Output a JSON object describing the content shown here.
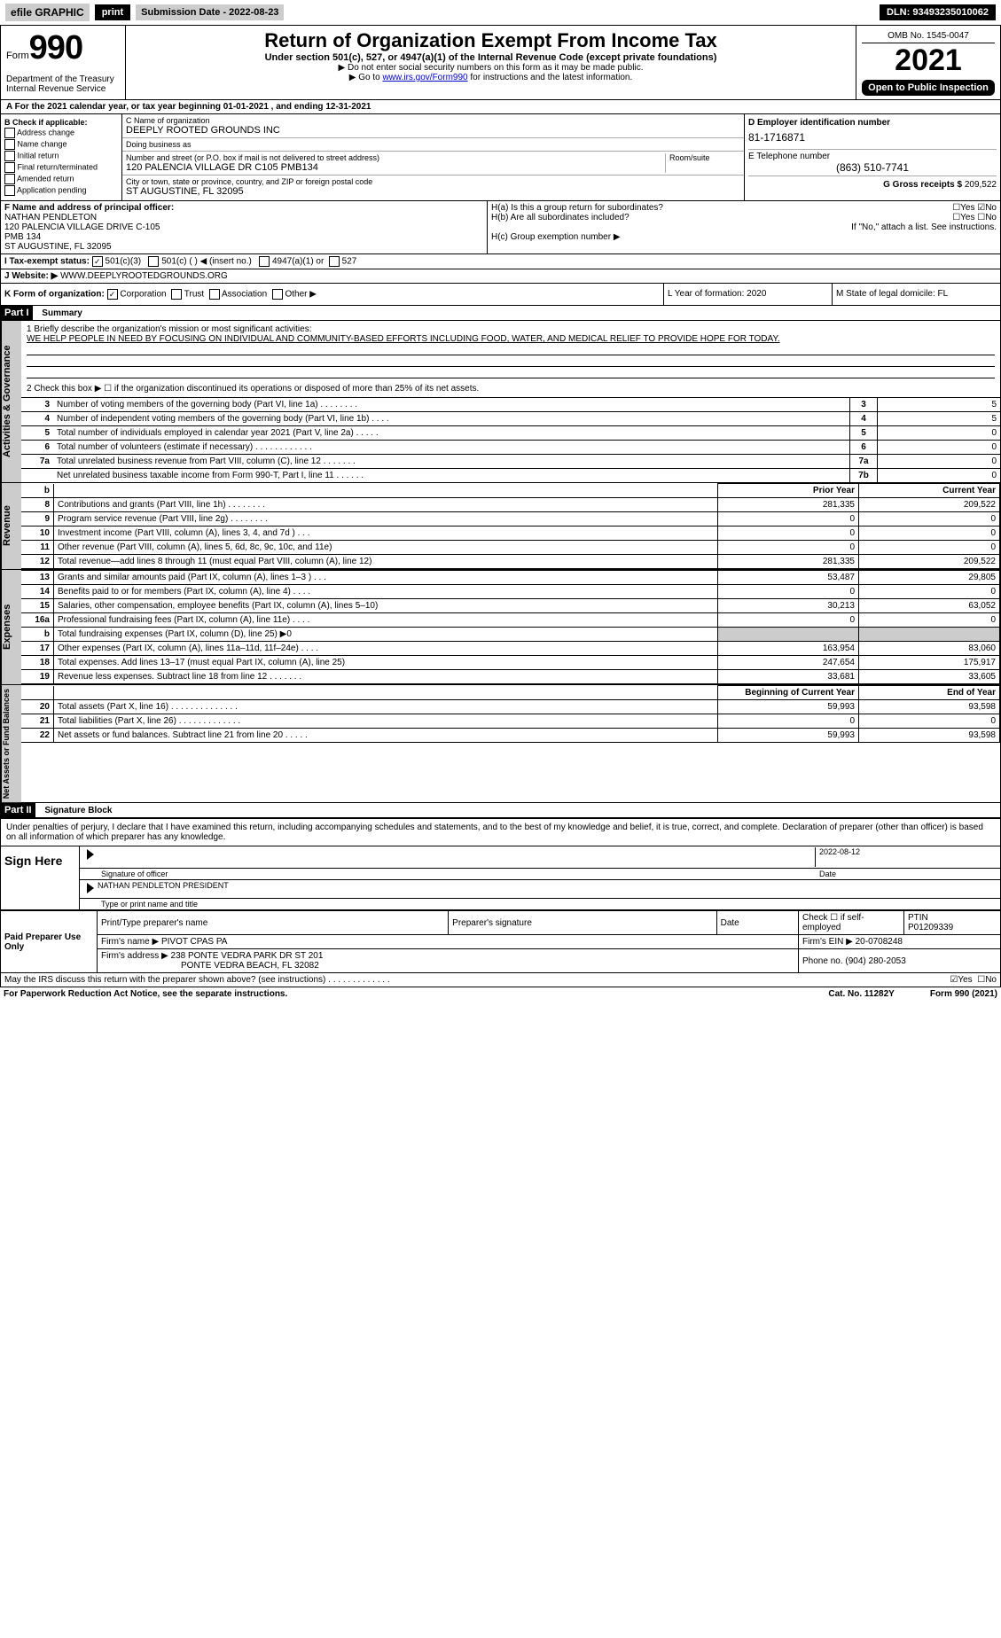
{
  "topbar": {
    "efile": "efile GRAPHIC",
    "print": "print",
    "submission": "Submission Date - 2022-08-23",
    "dln": "DLN: 93493235010062"
  },
  "header": {
    "form_word": "Form",
    "form_number": "990",
    "dept": "Department of the Treasury Internal Revenue Service",
    "title": "Return of Organization Exempt From Income Tax",
    "subtitle": "Under section 501(c), 527, or 4947(a)(1) of the Internal Revenue Code (except private foundations)",
    "arrow1": "▶ Do not enter social security numbers on this form as it may be made public.",
    "arrow2_pre": "▶ Go to ",
    "arrow2_link": "www.irs.gov/Form990",
    "arrow2_post": " for instructions and the latest information.",
    "omb": "OMB No. 1545-0047",
    "year": "2021",
    "open": "Open to Public Inspection"
  },
  "row_a": "A For the 2021 calendar year, or tax year beginning 01-01-2021    , and ending 12-31-2021",
  "col_b": {
    "title": "B Check if applicable:",
    "items": [
      "Address change",
      "Name change",
      "Initial return",
      "Final return/terminated",
      "Amended return",
      "Application pending"
    ]
  },
  "col_c": {
    "name_label": "C Name of organization",
    "name": "DEEPLY ROOTED GROUNDS INC",
    "dba_label": "Doing business as",
    "dba": "",
    "addr_label": "Number and street (or P.O. box if mail is not delivered to street address)",
    "room_label": "Room/suite",
    "addr": "120 PALENCIA VILLAGE DR C105 PMB134",
    "city_label": "City or town, state or province, country, and ZIP or foreign postal code",
    "city": "ST AUGUSTINE, FL  32095"
  },
  "col_d": {
    "ein_label": "D Employer identification number",
    "ein": "81-1716871",
    "phone_label": "E Telephone number",
    "phone": "(863) 510-7741",
    "gross_label": "G Gross receipts $",
    "gross": "209,522"
  },
  "section_f": {
    "label": "F  Name and address of principal officer:",
    "lines": [
      "NATHAN PENDLETON",
      "120 PALENCIA VILLAGE DRIVE C-105",
      "PMB 134",
      "ST AUGUSTINE, FL  32095"
    ]
  },
  "section_h": {
    "a": "H(a)  Is this a group return for subordinates?",
    "b": "H(b)  Are all subordinates included?",
    "b_note": "If \"No,\" attach a list. See instructions.",
    "c": "H(c)  Group exemption number ▶"
  },
  "row_i": {
    "label": "I    Tax-exempt status:",
    "opts": [
      "501(c)(3)",
      "501(c) (  ) ◀ (insert no.)",
      "4947(a)(1) or",
      "527"
    ]
  },
  "row_j": {
    "label": "J   Website: ▶",
    "val": "WWW.DEEPLYROOTEDGROUNDS.ORG"
  },
  "row_k": {
    "label": "K Form of organization:",
    "opts": [
      "Corporation",
      "Trust",
      "Association",
      "Other ▶"
    ],
    "l": "L Year of formation: 2020",
    "m": "M State of legal domicile: FL"
  },
  "part1": {
    "header": "Part I",
    "title": "Summary",
    "mission_q": "1   Briefly describe the organization's mission or most significant activities:",
    "mission": "WE HELP PEOPLE IN NEED BY FOCUSING ON INDIVIDUAL AND COMMUNITY-BASED EFFORTS INCLUDING FOOD, WATER, AND MEDICAL RELIEF TO PROVIDE HOPE FOR TODAY.",
    "line2": "2    Check this box ▶ ☐  if the organization discontinued its operations or disposed of more than 25% of its net assets.",
    "sidebar1": "Activities & Governance",
    "sidebar2": "Revenue",
    "sidebar3": "Expenses",
    "sidebar4": "Net Assets or Fund Balances"
  },
  "gov_lines": [
    {
      "n": "3",
      "d": "Number of voting members of the governing body (Part VI, line 1a)   .    .    .    .    .    .    .    .",
      "k": "3",
      "v": "5"
    },
    {
      "n": "4",
      "d": "Number of independent voting members of the governing body (Part VI, line 1b)   .    .    .    .",
      "k": "4",
      "v": "5"
    },
    {
      "n": "5",
      "d": "Total number of individuals employed in calendar year 2021 (Part V, line 2a)   .    .    .    .    .",
      "k": "5",
      "v": "0"
    },
    {
      "n": "6",
      "d": "Total number of volunteers (estimate if necessary)   .    .    .    .    .    .    .    .    .    .    .    .",
      "k": "6",
      "v": "0"
    },
    {
      "n": "7a",
      "d": "Total unrelated business revenue from Part VIII, column (C), line 12   .    .    .    .    .    .    .",
      "k": "7a",
      "v": "0"
    },
    {
      "n": "",
      "d": "Net unrelated business taxable income from Form 990-T, Part I, line 11   .    .    .    .    .    .",
      "k": "7b",
      "v": "0"
    }
  ],
  "fin_headers": {
    "b": "b",
    "py": "Prior Year",
    "cy": "Current Year"
  },
  "rev_lines": [
    {
      "n": "8",
      "d": "Contributions and grants (Part VIII, line 1h)   .    .    .    .    .    .    .    .",
      "py": "281,335",
      "cy": "209,522"
    },
    {
      "n": "9",
      "d": "Program service revenue (Part VIII, line 2g)   .    .    .    .    .    .    .    .",
      "py": "0",
      "cy": "0"
    },
    {
      "n": "10",
      "d": "Investment income (Part VIII, column (A), lines 3, 4, and 7d )   .    .    .",
      "py": "0",
      "cy": "0"
    },
    {
      "n": "11",
      "d": "Other revenue (Part VIII, column (A), lines 5, 6d, 8c, 9c, 10c, and 11e)",
      "py": "0",
      "cy": "0"
    },
    {
      "n": "12",
      "d": "Total revenue—add lines 8 through 11 (must equal Part VIII, column (A), line 12)",
      "py": "281,335",
      "cy": "209,522"
    }
  ],
  "exp_lines": [
    {
      "n": "13",
      "d": "Grants and similar amounts paid (Part IX, column (A), lines 1–3 )   .    .    .",
      "py": "53,487",
      "cy": "29,805"
    },
    {
      "n": "14",
      "d": "Benefits paid to or for members (Part IX, column (A), line 4)   .    .    .    .",
      "py": "0",
      "cy": "0"
    },
    {
      "n": "15",
      "d": "Salaries, other compensation, employee benefits (Part IX, column (A), lines 5–10)",
      "py": "30,213",
      "cy": "63,052"
    },
    {
      "n": "16a",
      "d": "Professional fundraising fees (Part IX, column (A), line 11e)   .    .    .    .",
      "py": "0",
      "cy": "0"
    },
    {
      "n": "b",
      "d": "Total fundraising expenses (Part IX, column (D), line 25) ▶0",
      "py": "",
      "cy": "",
      "shaded": true
    },
    {
      "n": "17",
      "d": "Other expenses (Part IX, column (A), lines 11a–11d, 11f–24e)   .    .    .    .",
      "py": "163,954",
      "cy": "83,060"
    },
    {
      "n": "18",
      "d": "Total expenses. Add lines 13–17 (must equal Part IX, column (A), line 25)",
      "py": "247,654",
      "cy": "175,917"
    },
    {
      "n": "19",
      "d": "Revenue less expenses. Subtract line 18 from line 12   .    .    .    .    .    .    .",
      "py": "33,681",
      "cy": "33,605"
    }
  ],
  "na_headers": {
    "py": "Beginning of Current Year",
    "cy": "End of Year"
  },
  "na_lines": [
    {
      "n": "20",
      "d": "Total assets (Part X, line 16)   .    .    .    .    .    .    .    .    .    .    .    .    .    .",
      "py": "59,993",
      "cy": "93,598"
    },
    {
      "n": "21",
      "d": "Total liabilities (Part X, line 26)   .    .    .    .    .    .    .    .    .    .    .    .    .",
      "py": "0",
      "cy": "0"
    },
    {
      "n": "22",
      "d": "Net assets or fund balances. Subtract line 21 from line 20   .    .    .    .    .",
      "py": "59,993",
      "cy": "93,598"
    }
  ],
  "part2": {
    "header": "Part II",
    "title": "Signature Block",
    "text": "Under penalties of perjury, I declare that I have examined this return, including accompanying schedules and statements, and to the best of my knowledge and belief, it is true, correct, and complete. Declaration of preparer (other than officer) is based on all information of which preparer has any knowledge.",
    "sign_here": "Sign Here",
    "sig_officer": "Signature of officer",
    "date": "Date",
    "date_val": "2022-08-12",
    "name_title": "NATHAN PENDLETON  PRESIDENT",
    "type_name": "Type or print name and title"
  },
  "paid": {
    "left": "Paid Preparer Use Only",
    "h1": "Print/Type preparer's name",
    "h2": "Preparer's signature",
    "h3": "Date",
    "h4_a": "Check ☐ if self-employed",
    "h4_b": "PTIN",
    "ptin": "P01209339",
    "firm_name_l": "Firm's name    ▶",
    "firm_name": "PIVOT CPAS PA",
    "firm_ein_l": "Firm's EIN ▶",
    "firm_ein": "20-0708248",
    "firm_addr_l": "Firm's address ▶",
    "firm_addr1": "238 PONTE VEDRA PARK DR ST 201",
    "firm_addr2": "PONTE VEDRA BEACH, FL  32082",
    "phone_l": "Phone no.",
    "phone": "(904) 280-2053"
  },
  "may_discuss": "May the IRS discuss this return with the preparer shown above? (see instructions)   .    .    .    .    .    .    .    .    .    .    .    .    .",
  "footer": {
    "left": "For Paperwork Reduction Act Notice, see the separate instructions.",
    "mid": "Cat. No. 11282Y",
    "right": "Form 990 (2021)"
  }
}
